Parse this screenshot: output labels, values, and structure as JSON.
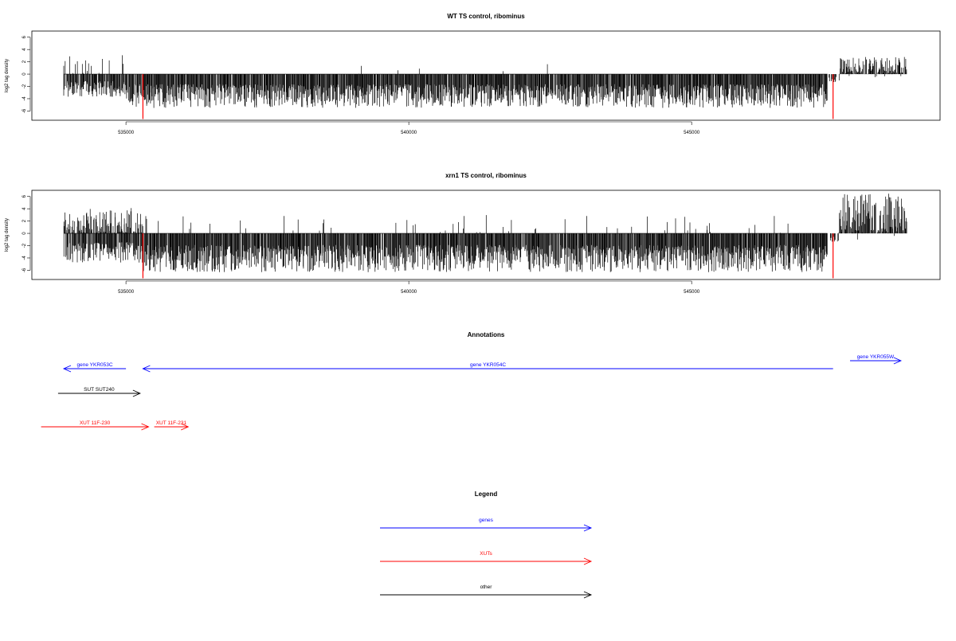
{
  "chart_data": [
    {
      "type": "bar",
      "title": "WT TS control, ribominus",
      "xlabel": "",
      "ylabel": "log2 tag density",
      "xlim": [
        533800,
        548900
      ],
      "ylim": [
        -7.5,
        7
      ],
      "yticks": [
        -6,
        -4,
        -2,
        0,
        2,
        4,
        6
      ],
      "xticks": [
        "535000",
        "540000",
        "545000"
      ],
      "xtick_values": [
        535000,
        540000,
        545000
      ],
      "highlight_color": "#ff0000",
      "bar_color": "#000000",
      "segments": [
        {
          "from": 533900,
          "to": 535000,
          "pos_frac": 0.18,
          "pos_max": 3.2,
          "neg_frac": 0.85,
          "neg_max": 3.8
        },
        {
          "from": 535000,
          "to": 547400,
          "pos_frac": 0.006,
          "pos_max": 2.0,
          "neg_frac": 0.92,
          "neg_max": 5.5
        },
        {
          "from": 547400,
          "to": 547600,
          "pos_frac": 0.0,
          "pos_max": 0.5,
          "neg_frac": 0.5,
          "neg_max": 1.5
        },
        {
          "from": 547600,
          "to": 548800,
          "pos_frac": 0.95,
          "pos_max": 2.8,
          "neg_frac": 0.05,
          "neg_max": 0.8
        }
      ],
      "highlights": [
        {
          "x": 535300,
          "y": -7.3
        },
        {
          "x": 547500,
          "y": -7.3
        }
      ]
    },
    {
      "type": "bar",
      "title": "xrn1 TS control, ribominus",
      "xlabel": "",
      "ylabel": "log2 tag density",
      "xlim": [
        533800,
        548900
      ],
      "ylim": [
        -7.5,
        7
      ],
      "yticks": [
        -6,
        -4,
        -2,
        0,
        2,
        4,
        6
      ],
      "xticks": [
        "535000",
        "540000",
        "545000"
      ],
      "xtick_values": [
        535000,
        540000,
        545000
      ],
      "highlight_color": "#ff0000",
      "bar_color": "#000000",
      "segments": [
        {
          "from": 533900,
          "to": 535300,
          "pos_frac": 0.85,
          "pos_max": 4.3,
          "neg_frac": 0.85,
          "neg_max": 4.8
        },
        {
          "from": 535300,
          "to": 547400,
          "pos_frac": 0.05,
          "pos_max": 3.0,
          "neg_frac": 0.95,
          "neg_max": 6.3
        },
        {
          "from": 547400,
          "to": 547600,
          "pos_frac": 0.0,
          "pos_max": 0.5,
          "neg_frac": 0.5,
          "neg_max": 1.5
        },
        {
          "from": 547600,
          "to": 548800,
          "pos_frac": 0.98,
          "pos_max": 6.5,
          "neg_frac": 0.03,
          "neg_max": 1.2
        }
      ],
      "highlights": [
        {
          "x": 535300,
          "y": -7.3
        },
        {
          "x": 547500,
          "y": -7.3
        }
      ]
    }
  ],
  "annotations": {
    "title": "Annotations",
    "items": [
      {
        "label": "gene YKR053C",
        "color": "#0000ff",
        "start": 535000,
        "end": 533900,
        "row": 1,
        "label_above": true
      },
      {
        "label": "gene YKR054C",
        "color": "#0000ff",
        "start": 547500,
        "end": 535300,
        "row": 1,
        "label_above": true
      },
      {
        "label": "gene YKR055W",
        "color": "#0000ff",
        "start": 547800,
        "end": 548700,
        "row": 0,
        "label_above": true
      },
      {
        "label": "SUT SUT240",
        "color": "#000000",
        "start": 533800,
        "end": 535250,
        "row": 2,
        "label_above": true
      },
      {
        "label": "XUT 11F-230",
        "color": "#ff0000",
        "start": 533500,
        "end": 535400,
        "row": 3,
        "label_above": true
      },
      {
        "label": "XUT 11F-231",
        "color": "#ff0000",
        "start": 535500,
        "end": 536100,
        "row": 3,
        "label_above": true
      }
    ]
  },
  "legend": {
    "title": "Legend",
    "items": [
      {
        "label": "genes",
        "color": "#0000ff"
      },
      {
        "label": "XUTs",
        "color": "#ff0000"
      },
      {
        "label": "other",
        "color": "#000000"
      }
    ]
  }
}
